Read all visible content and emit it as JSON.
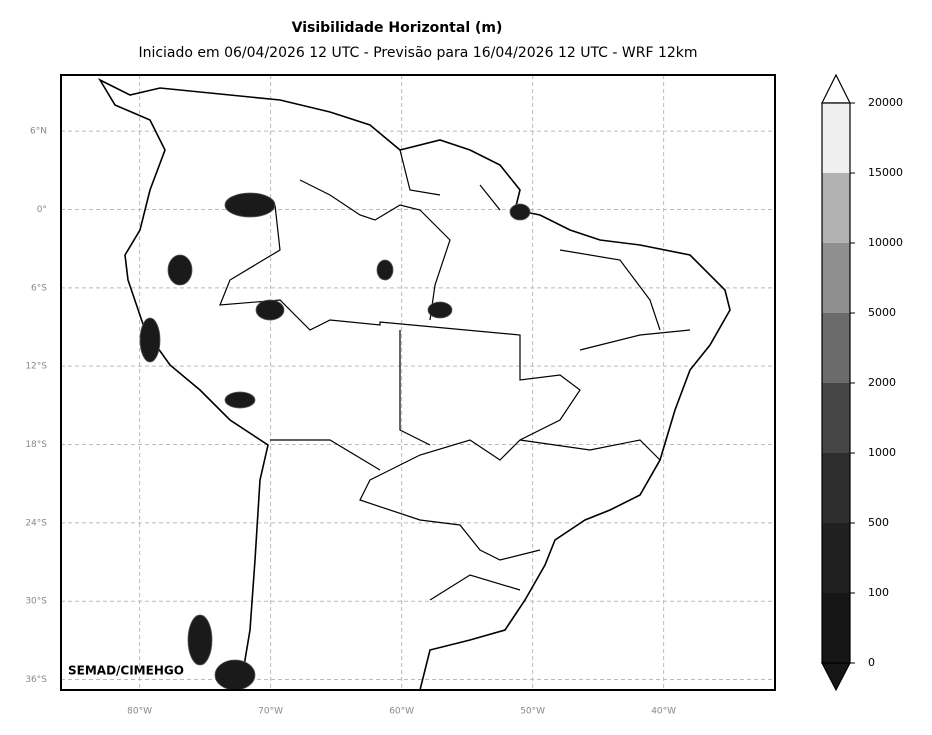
{
  "chart_data": {
    "type": "map",
    "title": "Visibilidade Horizontal (m)",
    "subtitle": "Iniciado em 06/04/2026 12 UTC - Previsão para 16/04/2026 12 UTC - WRF 12km",
    "credit": "SEMAD/CIMEHGO",
    "xlim": [
      -86,
      -31.5
    ],
    "ylim": [
      -36.8,
      10.3
    ],
    "xticks": [
      {
        "value": -80,
        "label": "80°W"
      },
      {
        "value": -70,
        "label": "70°W"
      },
      {
        "value": -60,
        "label": "60°W"
      },
      {
        "value": -50,
        "label": "50°W"
      },
      {
        "value": -40,
        "label": "40°W"
      }
    ],
    "yticks": [
      {
        "value": 6,
        "label": "6°N"
      },
      {
        "value": 0,
        "label": "0°"
      },
      {
        "value": -6,
        "label": "6°S"
      },
      {
        "value": -12,
        "label": "12°S"
      },
      {
        "value": -18,
        "label": "18°S"
      },
      {
        "value": -24,
        "label": "24°S"
      },
      {
        "value": -30,
        "label": "30°S"
      },
      {
        "value": -36,
        "label": "36°S"
      }
    ],
    "grid": true,
    "colorbar": {
      "levels": [
        0,
        100,
        500,
        1000,
        2000,
        5000,
        10000,
        15000,
        20000
      ],
      "colors": [
        "#161616",
        "#202020",
        "#2e2e2e",
        "#464646",
        "#6b6b6b",
        "#8f8f8f",
        "#b2b2b2",
        "#efefef"
      ]
    }
  }
}
